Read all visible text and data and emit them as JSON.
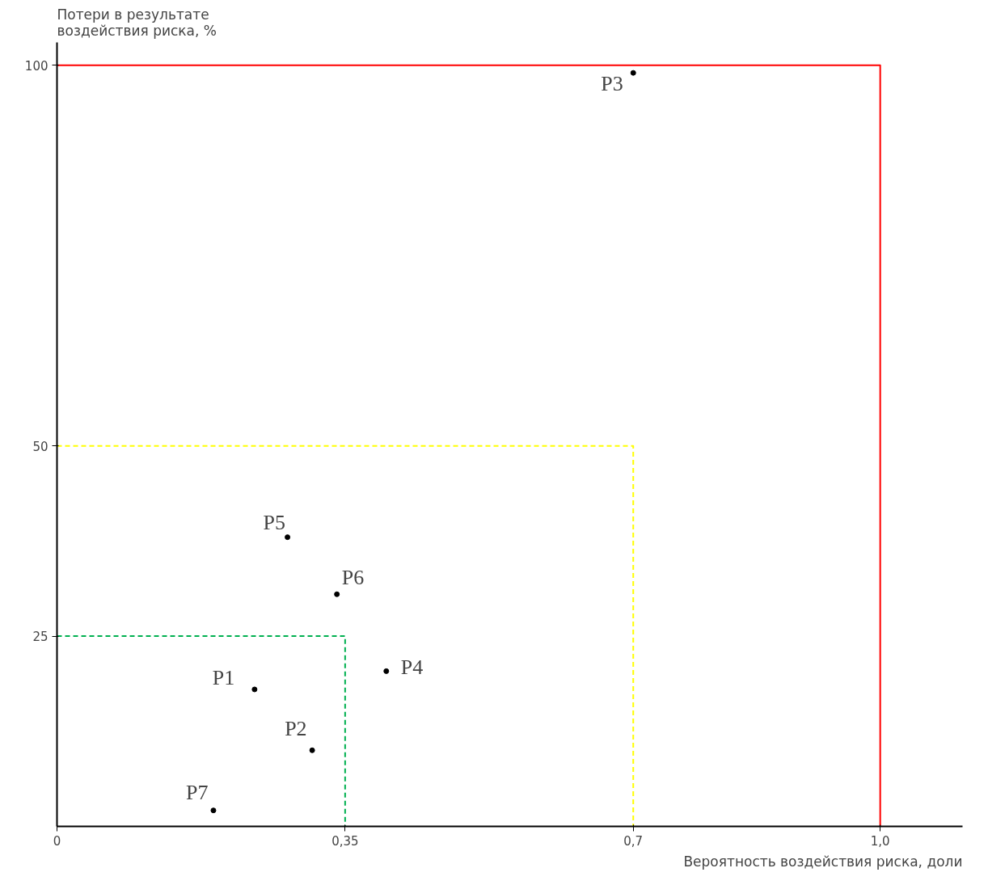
{
  "chart_data": {
    "type": "scatter",
    "xlabel": "Вероятность воздействия риска, доли",
    "ylabel": "Потери в результате\nвоздействия риска, %",
    "xlim": [
      0,
      1.1
    ],
    "ylim": [
      0,
      103
    ],
    "xticks": [
      {
        "value": 0,
        "label": "0"
      },
      {
        "value": 0.35,
        "label": "0,35"
      },
      {
        "value": 0.7,
        "label": "0,7"
      },
      {
        "value": 1.0,
        "label": "1,0"
      }
    ],
    "yticks": [
      25,
      50,
      100
    ],
    "grid": false,
    "series": [
      {
        "type": "line",
        "color": "#ff0000",
        "line_style": "solid",
        "x": [
          0,
          1.0,
          1.0
        ],
        "values": [
          100,
          100,
          0
        ]
      },
      {
        "type": "line",
        "color": "#ffff00",
        "line_style": "dashed",
        "x": [
          0,
          0.7,
          0.7
        ],
        "values": [
          50,
          50,
          0
        ]
      },
      {
        "type": "line",
        "color": "#00b050",
        "line_style": "dashed",
        "x": [
          0,
          0.35,
          0.35
        ],
        "values": [
          25,
          25,
          0
        ]
      },
      {
        "color": "#000000",
        "marker": "circle",
        "x": [
          0.24,
          0.31,
          0.7,
          0.4,
          0.28,
          0.34,
          0.19
        ],
        "values": [
          18,
          10,
          99,
          20.4,
          38,
          30.5,
          2.1
        ]
      }
    ],
    "annotations": [
      {
        "text": "P1",
        "x": 0.24,
        "y": 18
      },
      {
        "text": "P2",
        "x": 0.31,
        "y": 10
      },
      {
        "text": "P3",
        "x": 0.7,
        "y": 99
      },
      {
        "text": "P4",
        "x": 0.4,
        "y": 20.4
      },
      {
        "text": "P5",
        "x": 0.28,
        "y": 38
      },
      {
        "text": "P6",
        "x": 0.34,
        "y": 30.5
      },
      {
        "text": "P7",
        "x": 0.19,
        "y": 2.1
      }
    ]
  }
}
